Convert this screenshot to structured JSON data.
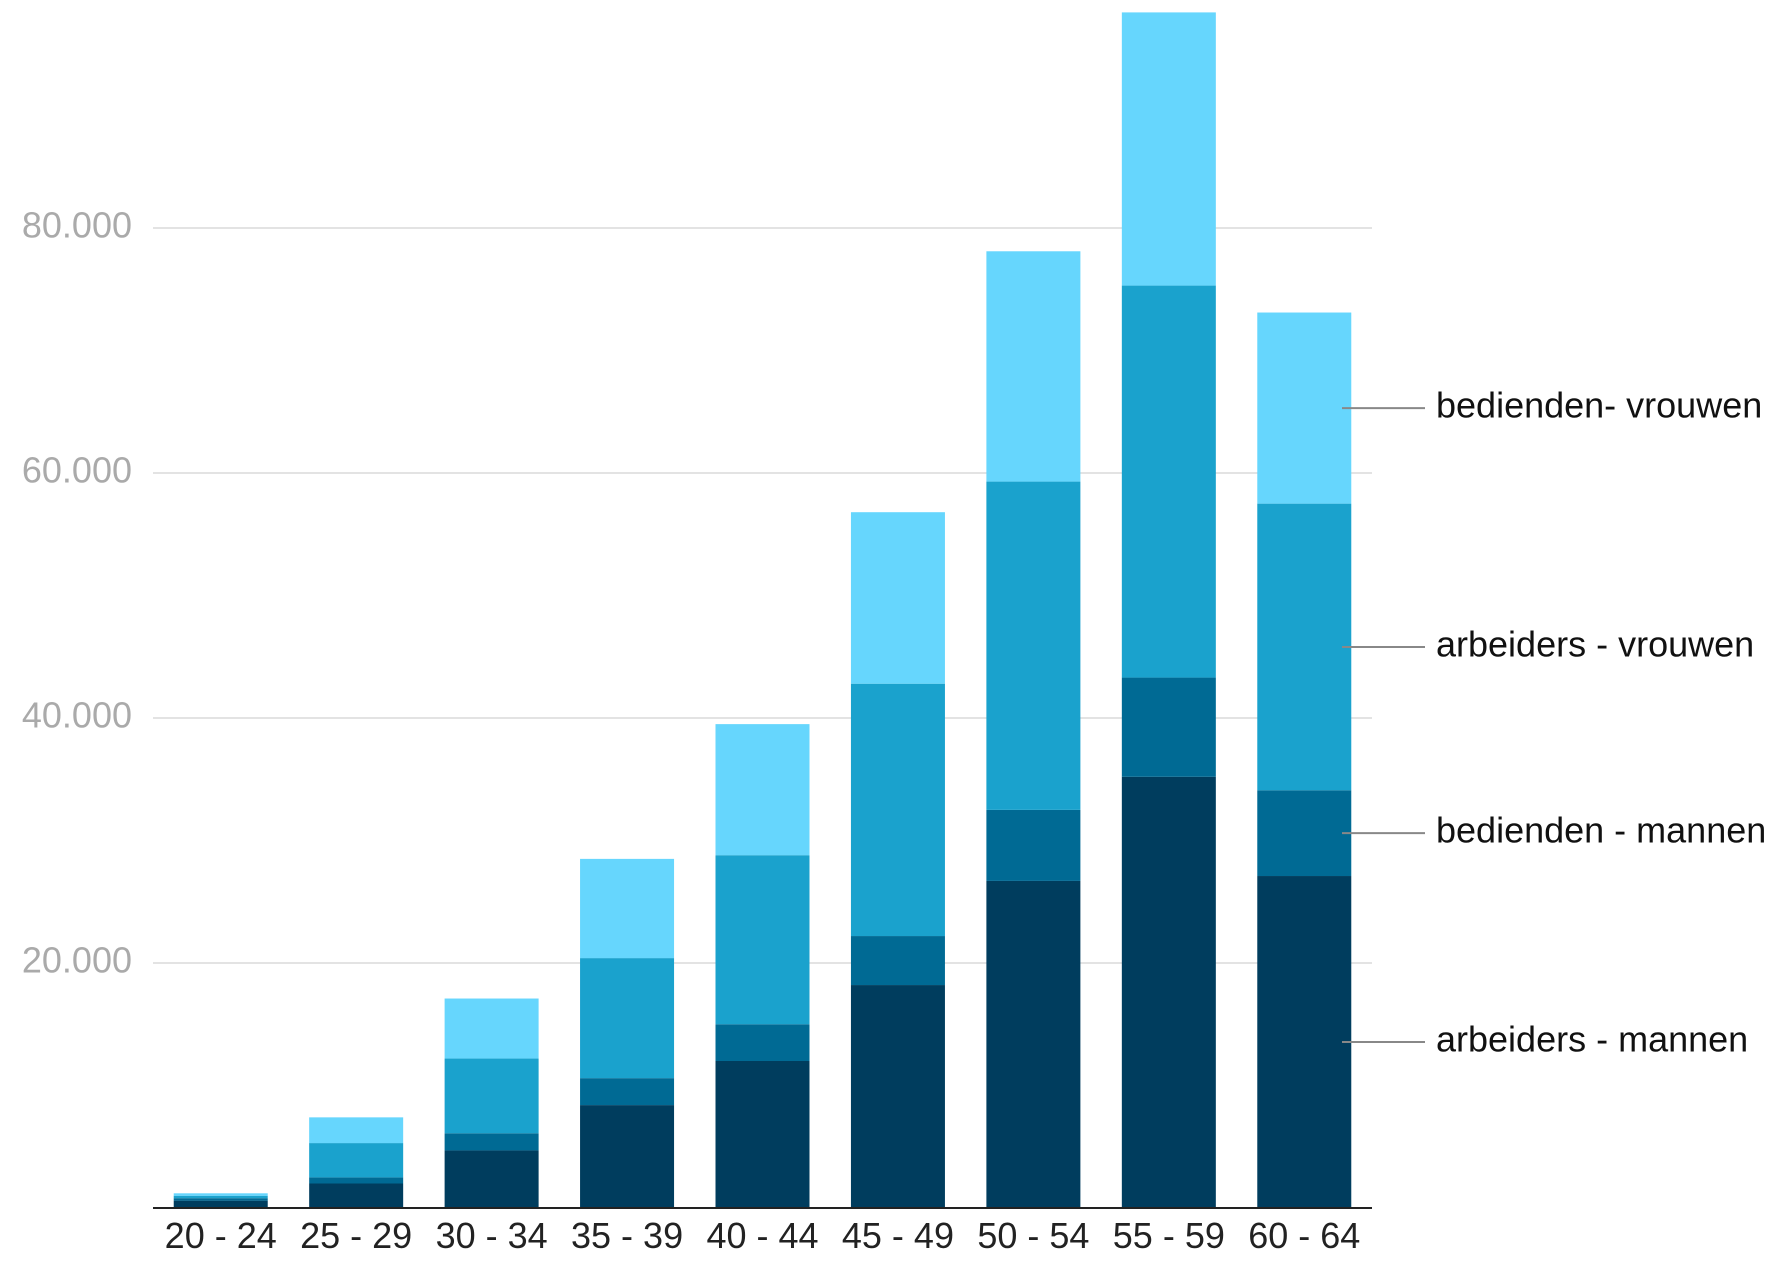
{
  "chart_data": {
    "type": "bar",
    "stacked": true,
    "categories": [
      "20 - 24",
      "25 - 29",
      "30 - 34",
      "35 - 39",
      "40 - 44",
      "45 - 49",
      "50 - 54",
      "55 - 59",
      "60 - 64"
    ],
    "series": [
      {
        "name": "arbeiders - mannen",
        "color": "#003d5e",
        "values": [
          600,
          2000,
          4700,
          8400,
          12000,
          18200,
          26700,
          35200,
          27100
        ]
      },
      {
        "name": "bedienden - mannen",
        "color": "#006a94",
        "values": [
          200,
          500,
          1400,
          2200,
          3000,
          4000,
          5800,
          8100,
          7000
        ]
      },
      {
        "name": "arbeiders - vrouwen",
        "color": "#1aa2cd",
        "values": [
          200,
          2800,
          6100,
          9800,
          13800,
          20600,
          26800,
          32000,
          23400
        ]
      },
      {
        "name": "bedienden- vrouwen",
        "color": "#66d6fd",
        "values": [
          200,
          2100,
          4900,
          8100,
          10700,
          14000,
          18800,
          22300,
          15600
        ]
      }
    ],
    "y_ticks": [
      20000,
      40000,
      60000,
      80000
    ],
    "y_tick_labels": [
      "20.000",
      "40.000",
      "60.000",
      "80.000"
    ],
    "ylim": [
      0,
      97500
    ],
    "grid": true,
    "legend_position": "right, inline labels"
  }
}
